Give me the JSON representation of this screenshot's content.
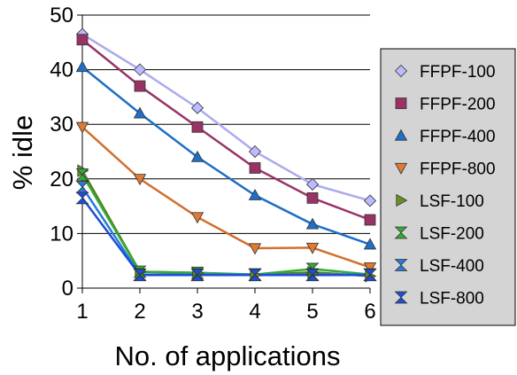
{
  "chart_data": {
    "type": "line",
    "title": "",
    "xlabel": "No. of applications",
    "ylabel": "% idle",
    "x": [
      1,
      2,
      3,
      4,
      5,
      6
    ],
    "xlim": [
      1,
      6
    ],
    "ylim": [
      0,
      50
    ],
    "yticks": [
      0,
      10,
      20,
      30,
      40,
      50
    ],
    "xticks": [
      1,
      2,
      3,
      4,
      5,
      6
    ],
    "grid": "horizontal",
    "legend_position": "right",
    "series": [
      {
        "name": "FFPF-100",
        "marker": "diamond",
        "line_color": "#aaaaee",
        "marker_color": "#bbbbff",
        "values": [
          46.5,
          40,
          33,
          25,
          19,
          16
        ]
      },
      {
        "name": "FFPF-200",
        "marker": "square",
        "line_color": "#993366",
        "marker_color": "#993366",
        "values": [
          45.5,
          37,
          29.5,
          22,
          16.5,
          12.5
        ]
      },
      {
        "name": "FFPF-400",
        "marker": "triangle-up",
        "line_color": "#1f6fc6",
        "marker_color": "#1f6fc6",
        "values": [
          40.5,
          32,
          24,
          17,
          11.7,
          8
        ]
      },
      {
        "name": "FFPF-800",
        "marker": "triangle-down",
        "line_color": "#d0702c",
        "marker_color": "#dd7a33",
        "values": [
          29.5,
          20,
          13,
          7.3,
          7.4,
          3.8
        ]
      },
      {
        "name": "LSF-100",
        "marker": "triangle-right",
        "line_color": "#5a7a1a",
        "marker_color": "#6b8e23",
        "values": [
          21.5,
          3,
          2.8,
          2.4,
          2.9,
          2.2
        ]
      },
      {
        "name": "LSF-200",
        "marker": "bowtie",
        "line_color": "#33aa33",
        "marker_color": "#33aa33",
        "values": [
          20.8,
          3,
          2.8,
          2.5,
          3.5,
          2.5
        ]
      },
      {
        "name": "LSF-400",
        "marker": "hourglass",
        "line_color": "#2a7ad6",
        "marker_color": "#2a7ad6",
        "values": [
          18.5,
          2.5,
          2.5,
          2.5,
          2.5,
          2.5
        ]
      },
      {
        "name": "LSF-800",
        "marker": "hourglass",
        "line_color": "#1a4fd6",
        "marker_color": "#1a4fd6",
        "values": [
          16.5,
          2.4,
          2.4,
          2.4,
          2.4,
          2.4
        ]
      }
    ]
  }
}
